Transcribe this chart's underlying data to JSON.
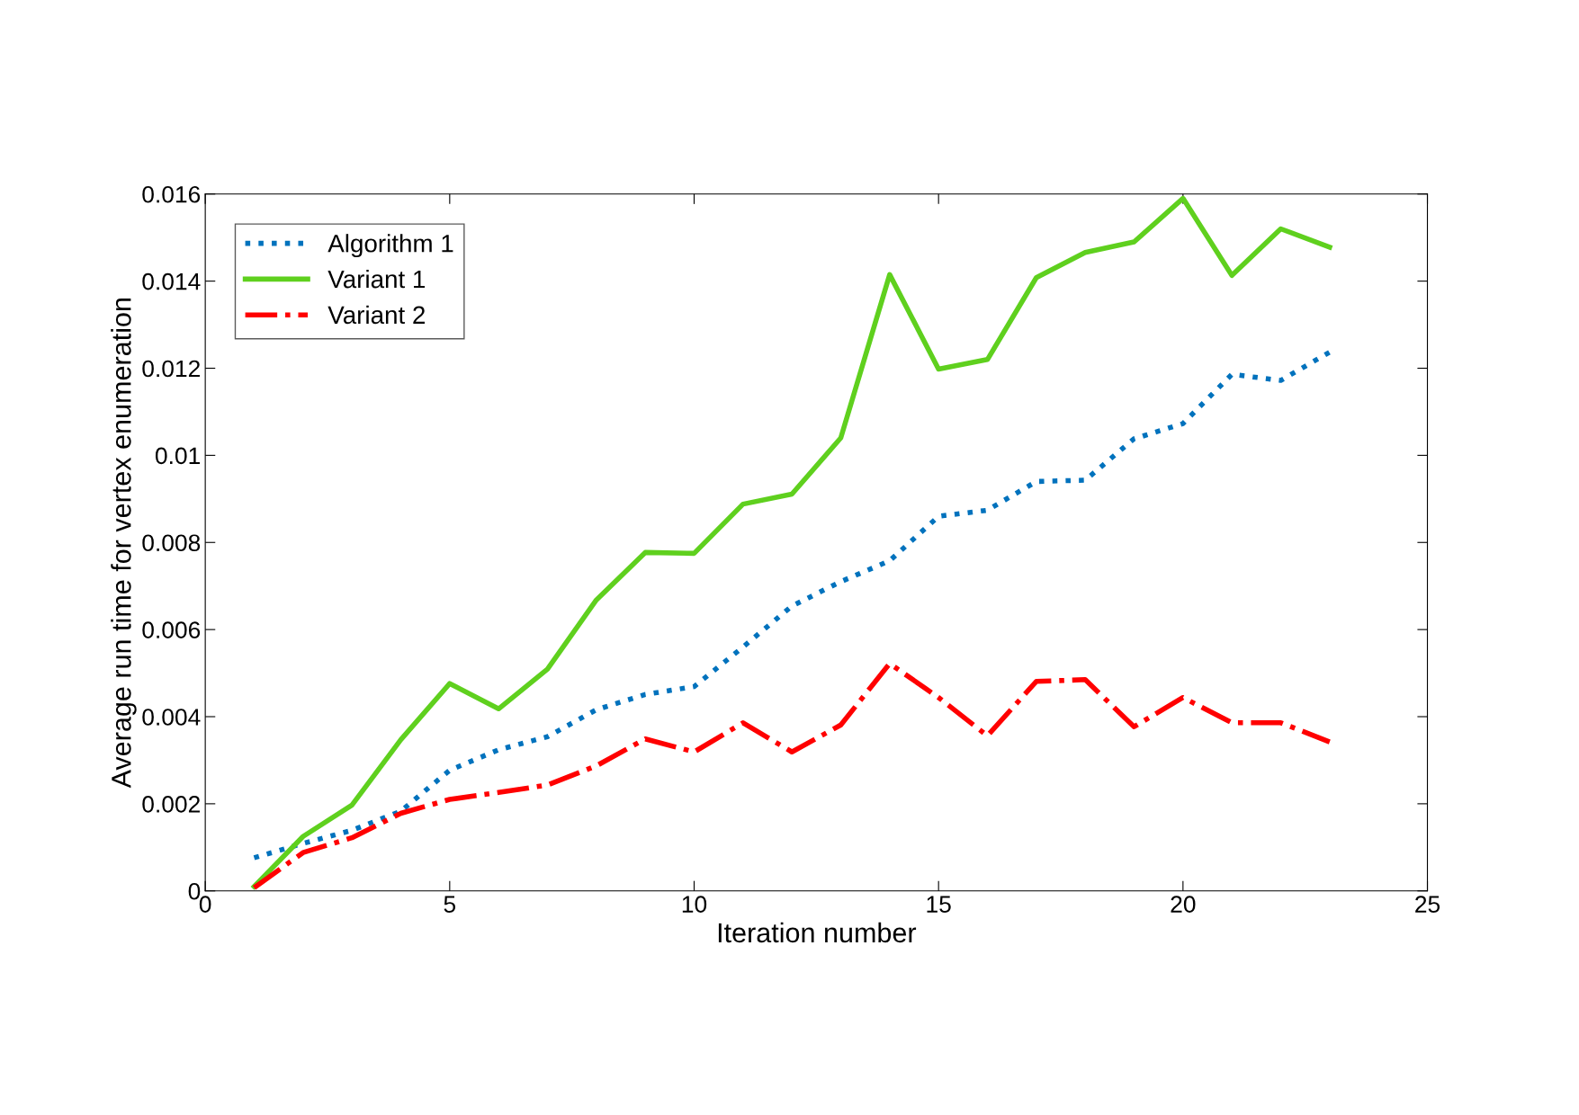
{
  "chart_data": {
    "type": "line",
    "xlabel": "Iteration number",
    "ylabel": "Average run time for vertex enumeration",
    "x": [
      1,
      2,
      3,
      4,
      5,
      6,
      7,
      8,
      9,
      10,
      11,
      12,
      13,
      14,
      15,
      16,
      17,
      18,
      19,
      20,
      21,
      22,
      23
    ],
    "xlim": [
      0,
      25
    ],
    "xticks": [
      0,
      5,
      10,
      15,
      20,
      25
    ],
    "ylim": [
      0,
      0.016
    ],
    "yticks": [
      0,
      {
        "value": 0.002,
        "label": "0.002"
      },
      {
        "value": 0.004,
        "label": "0.004"
      },
      {
        "value": 0.006,
        "label": "0.006"
      },
      {
        "value": 0.008,
        "label": "0.008"
      },
      {
        "value": 0.01,
        "label": "0.01"
      },
      {
        "value": 0.012,
        "label": "0.012"
      },
      {
        "value": 0.014,
        "label": "0.014"
      },
      {
        "value": 0.016,
        "label": "0.016"
      }
    ],
    "grid": false,
    "legend": "top left",
    "marker": "none",
    "series": [
      {
        "name": "Algorithm 1",
        "color": "#0072bd",
        "line_style": "dotted",
        "values": [
          0.00076,
          0.00109,
          0.00139,
          0.00183,
          0.00277,
          0.00324,
          0.00354,
          0.00416,
          0.00451,
          0.00469,
          0.0056,
          0.00654,
          0.0071,
          0.00758,
          0.0086,
          0.00874,
          0.0094,
          0.00943,
          0.01038,
          0.01073,
          0.01186,
          0.01172,
          0.01237
        ]
      },
      {
        "name": "Variant 1",
        "color": "#5fd01e",
        "line_style": "solid",
        "values": [
          0.0001,
          0.00125,
          0.00197,
          0.00347,
          0.00476,
          0.00418,
          0.00509,
          0.00668,
          0.00777,
          0.00775,
          0.00888,
          0.00911,
          0.0104,
          0.01415,
          0.01198,
          0.0122,
          0.01408,
          0.01466,
          0.0149,
          0.0159,
          0.01413,
          0.0152,
          0.01478
        ]
      },
      {
        "name": "Variant 2",
        "color": "#ff0000",
        "line_style": "dashdot",
        "values": [
          7e-05,
          0.00088,
          0.00122,
          0.00178,
          0.0021,
          0.00226,
          0.00243,
          0.00287,
          0.00349,
          0.00319,
          0.00386,
          0.00319,
          0.00381,
          0.00522,
          0.00444,
          0.00356,
          0.00481,
          0.00485,
          0.00377,
          0.00444,
          0.00386,
          0.00386,
          0.00342
        ]
      }
    ]
  }
}
